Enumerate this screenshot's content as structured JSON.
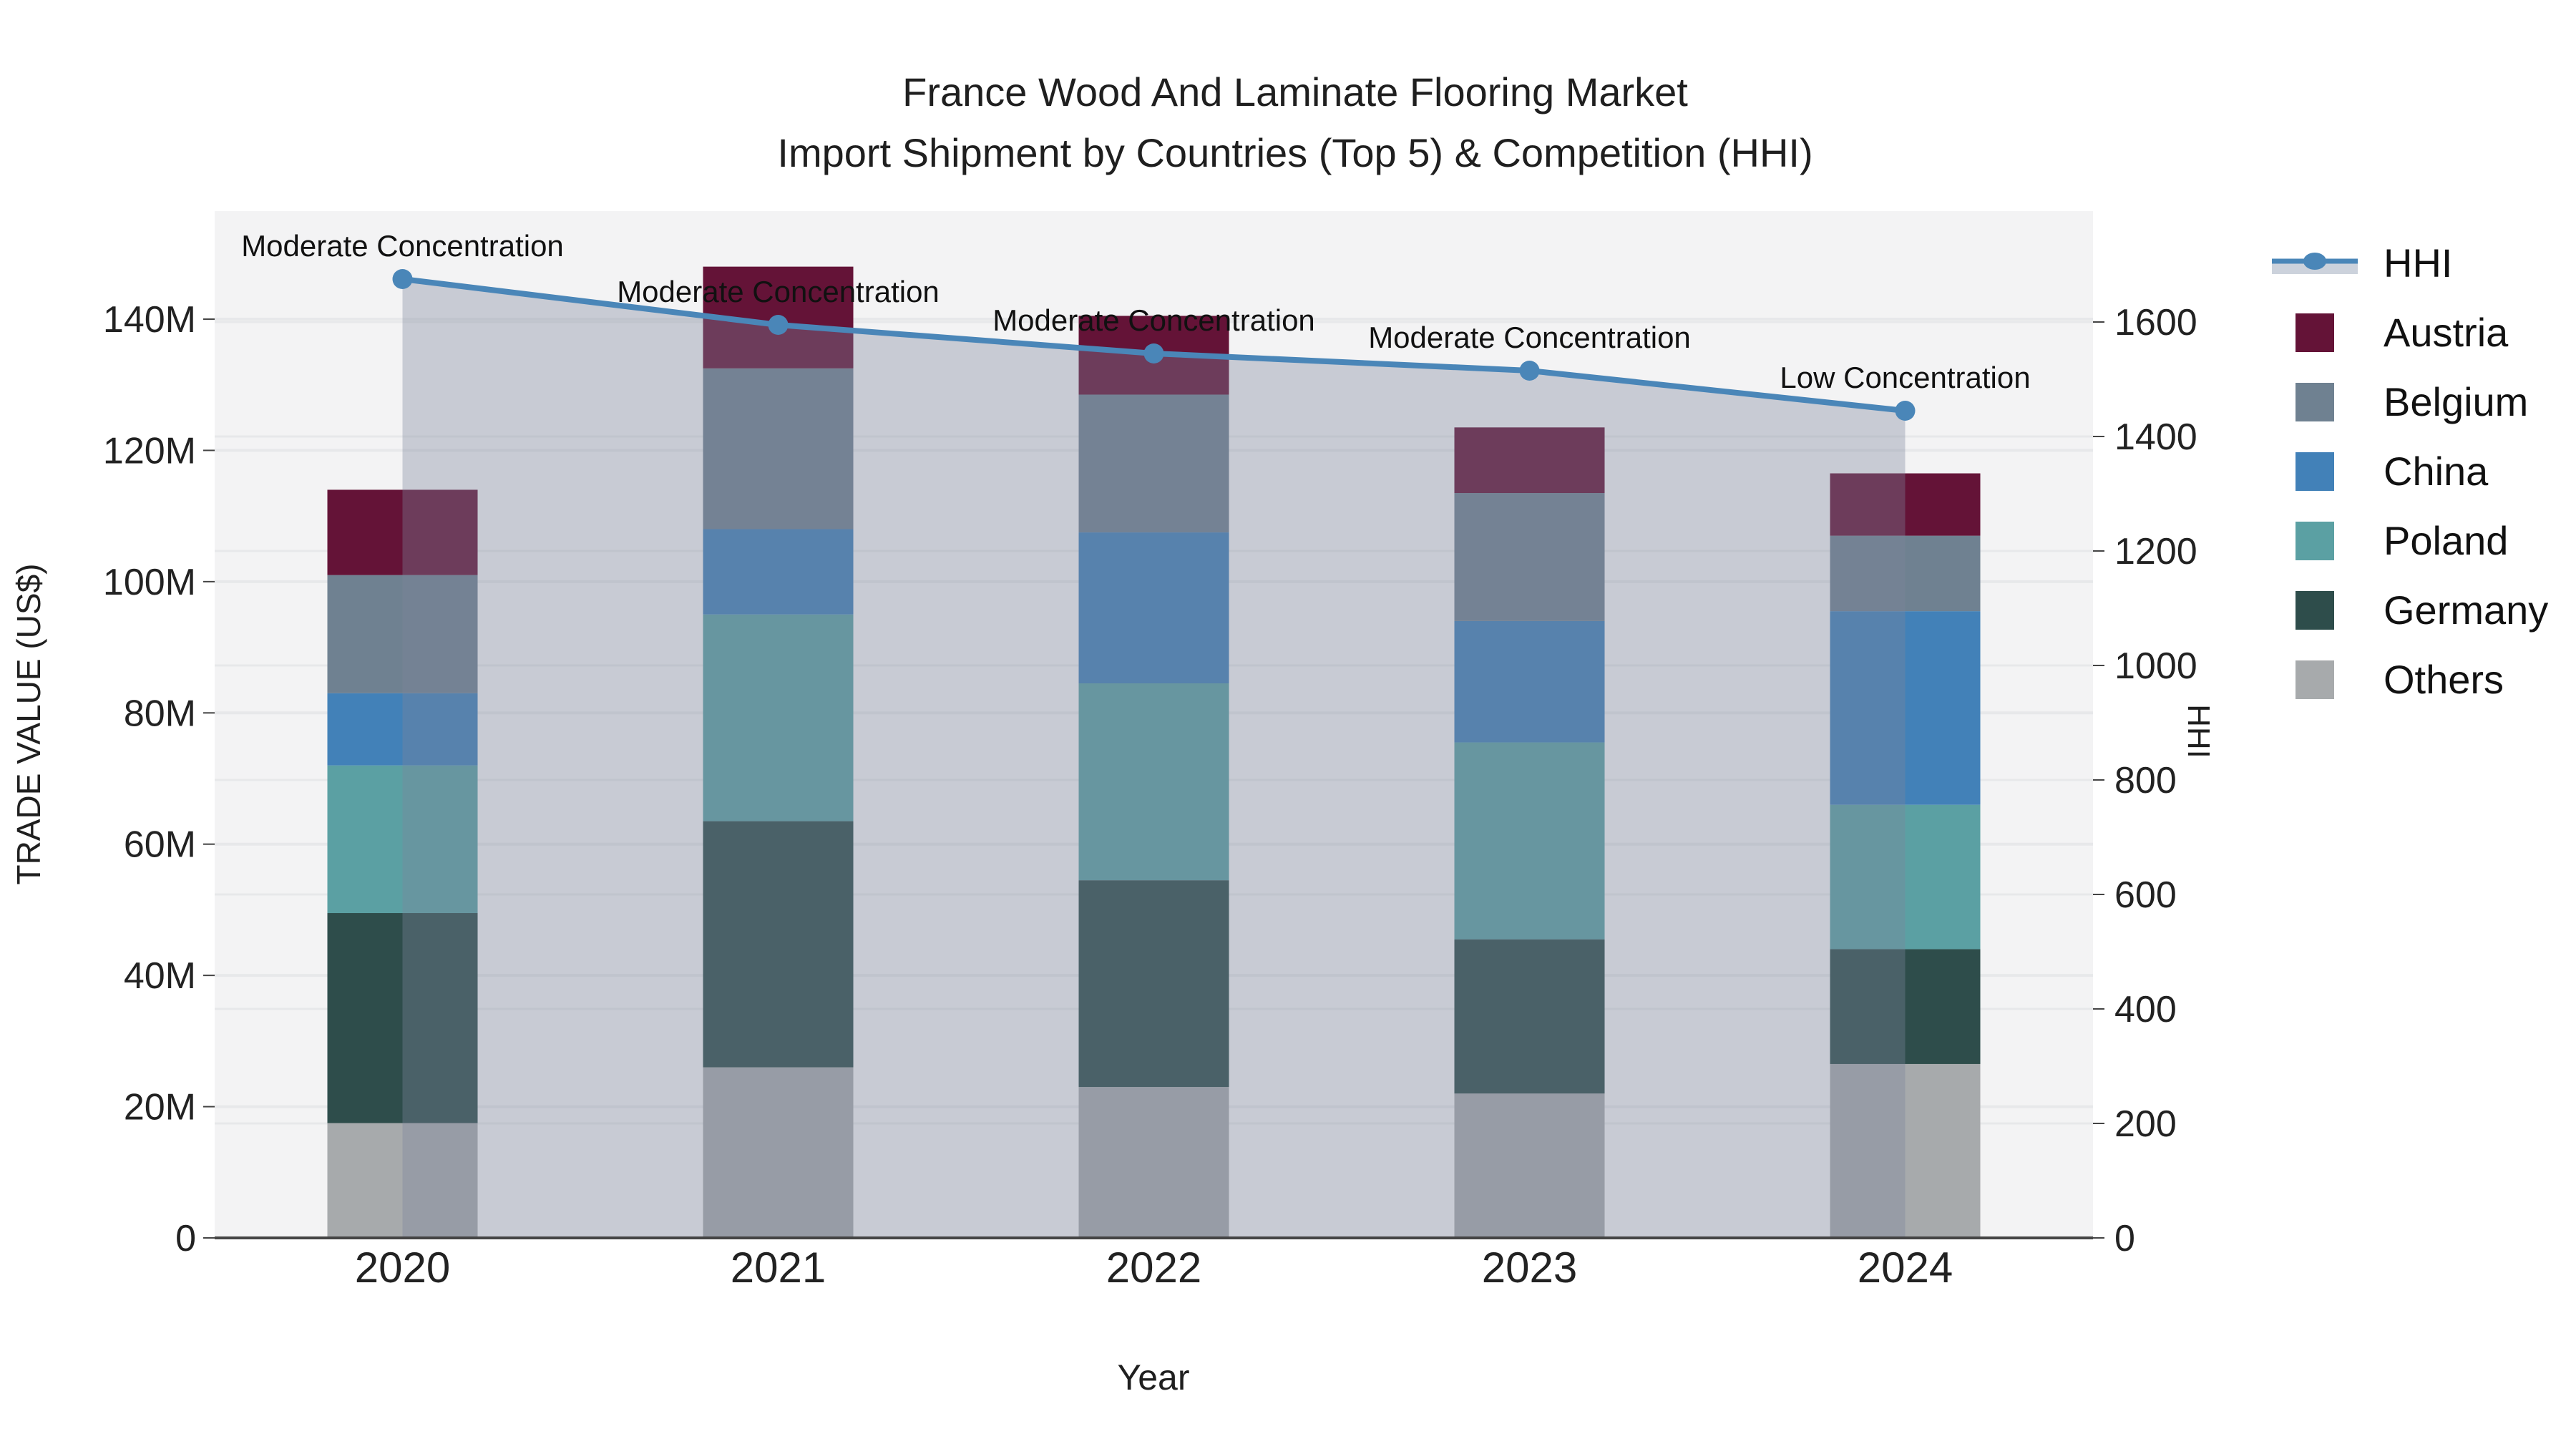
{
  "title": {
    "line1": "France Wood And Laminate Flooring Market",
    "line2": "Import Shipment by Countries (Top 5) & Competition (HHI)"
  },
  "axes": {
    "x_label": "Year",
    "y_left_label": "TRADE VALUE (US$)",
    "y_right_label": "HHI",
    "y_left_ticks": [
      "0",
      "20M",
      "40M",
      "60M",
      "80M",
      "100M",
      "120M",
      "140M"
    ],
    "y_left_tick_values": [
      0,
      20,
      40,
      60,
      80,
      100,
      120,
      140
    ],
    "y_right_ticks": [
      "0",
      "200",
      "400",
      "600",
      "800",
      "1000",
      "1200",
      "1400",
      "1600"
    ],
    "y_right_tick_values": [
      0,
      200,
      400,
      600,
      800,
      1000,
      1200,
      1400,
      1600
    ]
  },
  "legend": {
    "position": "right",
    "items": [
      {
        "label": "HHI",
        "type": "line",
        "color": "#4a86b8"
      },
      {
        "label": "Austria",
        "type": "square",
        "color": "#641337"
      },
      {
        "label": "Belgium",
        "type": "square",
        "color": "#6f8191"
      },
      {
        "label": "China",
        "type": "square",
        "color": "#4281b8"
      },
      {
        "label": "Poland",
        "type": "square",
        "color": "#5ba0a3"
      },
      {
        "label": "Germany",
        "type": "square",
        "color": "#2e4d4b"
      },
      {
        "label": "Others",
        "type": "square",
        "color": "#a7aaac"
      }
    ]
  },
  "colors": {
    "plot_background": "#f3f3f4",
    "gridline": "#e7e8ea",
    "hhi_line": "#4a86b8",
    "hhi_area_fill": "rgba(125,132,155,0.36)",
    "hhi_legend_band": "#ccd2dc",
    "axis_line": "#454545",
    "text": "#1f1f1f"
  },
  "chart_data": {
    "type": "bar",
    "subtype": "stacked-bars-with-line",
    "units": "millions USD (left axis), HHI index (right axis)",
    "categories": [
      "2020",
      "2021",
      "2022",
      "2023",
      "2024"
    ],
    "series": [
      {
        "name": "Others",
        "color": "#a7aaac",
        "values": [
          17.5,
          26.0,
          23.0,
          22.0,
          26.5
        ]
      },
      {
        "name": "Germany",
        "color": "#2e4d4b",
        "values": [
          32.0,
          37.5,
          31.5,
          23.5,
          17.5
        ]
      },
      {
        "name": "Poland",
        "color": "#5ba0a3",
        "values": [
          22.5,
          31.5,
          30.0,
          30.0,
          22.0
        ]
      },
      {
        "name": "China",
        "color": "#4281b8",
        "values": [
          11.0,
          13.0,
          23.0,
          18.5,
          29.5
        ]
      },
      {
        "name": "Belgium",
        "color": "#6f8191",
        "values": [
          18.0,
          24.5,
          21.0,
          19.5,
          11.5
        ]
      },
      {
        "name": "Austria",
        "color": "#641337",
        "values": [
          13.0,
          15.5,
          12.0,
          10.0,
          9.5
        ]
      }
    ],
    "stack_totals": [
      114.0,
      148.0,
      140.5,
      123.5,
      116.5
    ],
    "line_series": {
      "name": "HHI",
      "color": "#4a86b8",
      "values": [
        1675,
        1595,
        1545,
        1515,
        1445
      ],
      "area_under_line": true
    },
    "annotations": [
      "Moderate Concentration",
      "Moderate Concentration",
      "Moderate Concentration",
      "Moderate Concentration",
      "Low Concentration"
    ],
    "y_left_range": [
      0,
      156
    ],
    "y_right_range": [
      0,
      1790
    ],
    "grid": true,
    "legend_position": "right"
  }
}
